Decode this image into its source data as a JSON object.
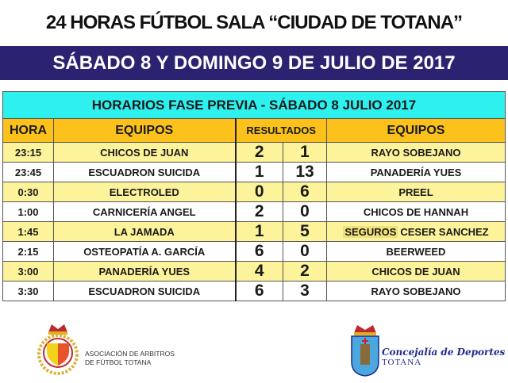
{
  "header": {
    "title": "24 HORAS  FÚTBOL SALA  “CIUDAD DE TOTANA”",
    "subtitle": "SÁBADO 8 Y DOMINGO 9 DE JULIO DE 2017"
  },
  "table": {
    "caption": "HORARIOS FASE PREVIA - SÁBADO 8 JULIO 2017",
    "columns": {
      "hora": "HORA",
      "equipos1": "EQUIPOS",
      "resultados": "RESULTADOS",
      "equipos2": "EQUIPOS"
    },
    "rows": [
      {
        "hora": "23:15",
        "home": "CHICOS DE JUAN",
        "hs": "2",
        "as": "1",
        "away": "RAYO SOBEJANO"
      },
      {
        "hora": "23:45",
        "home": "ESCUADRON SUICIDA",
        "hs": "1",
        "as": "13",
        "away": "PANADERÍA YUES"
      },
      {
        "hora": "0:30",
        "home": "ELECTROLED",
        "hs": "0",
        "as": "6",
        "away": "PREEL"
      },
      {
        "hora": "1:00",
        "home": "CARNICERÍA ANGEL",
        "hs": "2",
        "as": "0",
        "away": "CHICOS DE HANNAH"
      },
      {
        "hora": "1:45",
        "home": "LA JAMADA",
        "hs": "1",
        "as": "5",
        "away_hl": "SEGUROS",
        "away": "CESER SANCHEZ"
      },
      {
        "hora": "2:15",
        "home": "OSTEOPATÍA A. GARCÍA",
        "hs": "6",
        "as": "0",
        "away": "BEERWEED"
      },
      {
        "hora": "3:00",
        "home": "PANADERÍA YUES",
        "hs": "4",
        "as": "2",
        "away": "CHICOS DE JUAN"
      },
      {
        "hora": "3:30",
        "home": "ESCUADRON SUICIDA",
        "hs": "6",
        "as": "3",
        "away": "RAYO SOBEJANO"
      }
    ]
  },
  "footer": {
    "left": {
      "line1": "ASOCIACIÓN DE ARBITROS",
      "line2": "DE FÚTBOL TOTANA"
    },
    "right": {
      "line1": "Concejalía de Deportes",
      "line2": "TOTANA"
    }
  },
  "colors": {
    "banner": "#2b2271",
    "caption": "#2ef0ef",
    "header": "#fcc21b",
    "row_alt": "#fdf39a"
  }
}
